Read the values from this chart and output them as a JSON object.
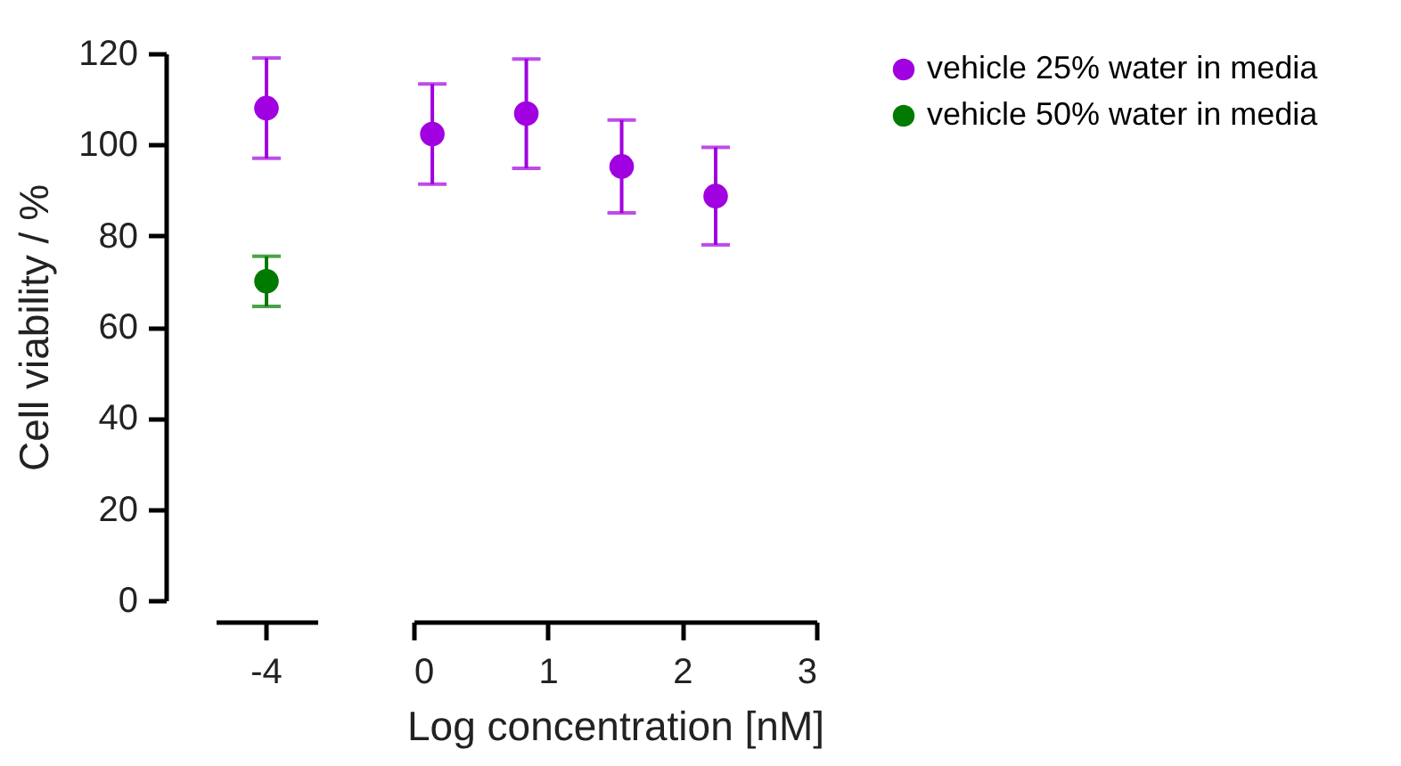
{
  "chart_data": [
    {
      "type": "scatter",
      "ylabel": "Cell viability / %",
      "categories": [
        "-4"
      ],
      "ylim": [
        0,
        120
      ],
      "yticks": [
        0,
        20,
        40,
        60,
        80,
        100,
        120
      ],
      "marker": "circle",
      "grid": false,
      "legend": "top right",
      "series": [
        {
          "name": "vehicle 25% water in media",
          "color": "#a100e0",
          "values": [
            108
          ],
          "errors": [
            11
          ]
        },
        {
          "name": "vehicle 50% water in media",
          "color": "#007a00",
          "values": [
            70
          ],
          "errors": [
            5.5
          ]
        }
      ]
    },
    {
      "type": "scatter",
      "xlabel": "Log concentration [nM]",
      "xlim": [
        0,
        3
      ],
      "xticks": [
        0,
        1,
        2,
        3
      ],
      "ylim": [
        0,
        120
      ],
      "yticks": [
        0,
        20,
        40,
        60,
        80,
        100,
        120
      ],
      "tick_labels": "x",
      "marker": "circle",
      "grid": false,
      "legend": "top right",
      "series": [
        {
          "name": "vehicle 25% water in media",
          "color": "#a100e0",
          "x": [
            0.14,
            0.84,
            1.55,
            2.25
          ],
          "values": [
            102.3,
            106.8,
            95.2,
            88.7
          ],
          "errors": [
            11,
            12,
            10.2,
            10.7
          ]
        }
      ]
    }
  ]
}
